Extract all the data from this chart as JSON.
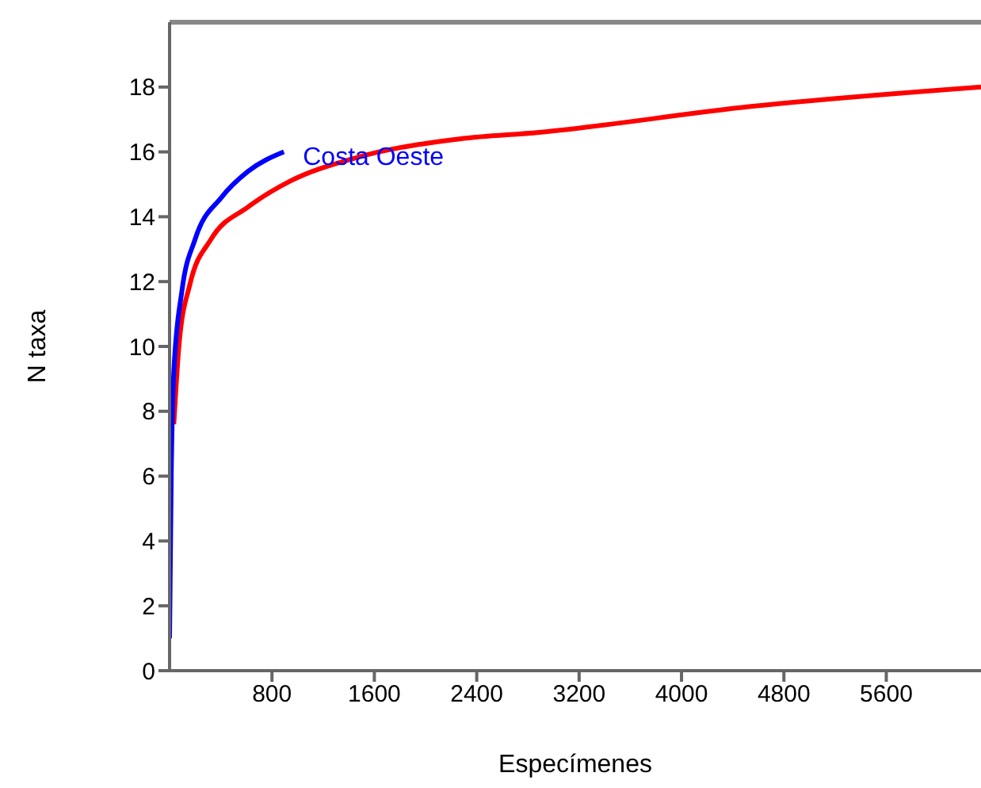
{
  "chart_data": {
    "type": "line",
    "xlabel": "Especímenes",
    "ylabel": "N taxa",
    "xlim": [
      0,
      6340
    ],
    "ylim": [
      0,
      20
    ],
    "xticks": [
      800,
      1600,
      2400,
      3200,
      4000,
      4800,
      5600
    ],
    "yticks": [
      0,
      2,
      4,
      6,
      8,
      10,
      12,
      14,
      16,
      18
    ],
    "grid": false,
    "legend": false,
    "marker": "none",
    "line_style": "solid",
    "series": [
      {
        "color": "#ff0000",
        "x": [
          33,
          75,
          158,
          323,
          613,
          943,
          1439,
          2267,
          2886,
          4542,
          6340
        ],
        "values": [
          7.6,
          10.1,
          11.9,
          13.3,
          14.3,
          15.1,
          15.8,
          16.4,
          16.6,
          17.4,
          18.0
        ]
      },
      {
        "name": "Costa Oeste",
        "color": "#0000ff",
        "x": [
          0,
          13,
          33,
          96,
          199,
          406,
          613,
          893
        ],
        "values": [
          1,
          6.0,
          9.2,
          11.7,
          13.3,
          14.6,
          15.4,
          16.0
        ]
      }
    ]
  }
}
